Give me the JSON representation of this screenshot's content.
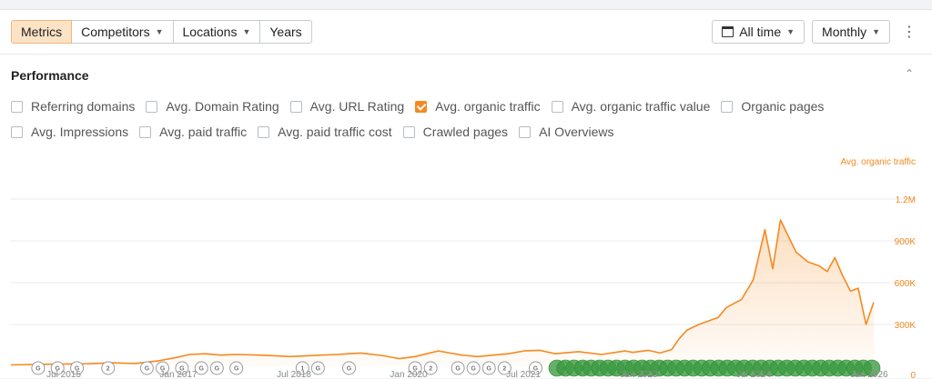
{
  "toolbar": {
    "tabs": [
      {
        "label": "Metrics",
        "active": true,
        "dropdown": false
      },
      {
        "label": "Competitors",
        "active": false,
        "dropdown": true
      },
      {
        "label": "Locations",
        "active": false,
        "dropdown": true
      },
      {
        "label": "Years",
        "active": false,
        "dropdown": false
      }
    ],
    "period_label": "All time",
    "granularity_label": "Monthly"
  },
  "section": {
    "title": "Performance"
  },
  "metrics": {
    "row1": [
      {
        "label": "Referring domains",
        "checked": false
      },
      {
        "label": "Avg. Domain Rating",
        "checked": false
      },
      {
        "label": "Avg. URL Rating",
        "checked": false
      },
      {
        "label": "Avg. organic traffic",
        "checked": true
      },
      {
        "label": "Avg. organic traffic value",
        "checked": false
      },
      {
        "label": "Organic pages",
        "checked": false
      }
    ],
    "row2": [
      {
        "label": "Avg. Impressions",
        "checked": false
      },
      {
        "label": "Avg. paid traffic",
        "checked": false
      },
      {
        "label": "Avg. paid traffic cost",
        "checked": false
      },
      {
        "label": "Crawled pages",
        "checked": false
      },
      {
        "label": "AI Overviews",
        "checked": false
      }
    ]
  },
  "colors": {
    "accent": "#f5891f",
    "annotation_green": "#3a9a3f",
    "annotation_grey": "#9a9a9a"
  },
  "chart_data": {
    "type": "area",
    "series": [
      {
        "name": "Avg. organic traffic"
      }
    ],
    "ylabel": "Avg. organic traffic",
    "ylim": [
      0,
      1200000
    ],
    "y_ticks": [
      {
        "value": 0,
        "label": "0"
      },
      {
        "value": 300000,
        "label": "300K"
      },
      {
        "value": 600000,
        "label": "600K"
      },
      {
        "value": 900000,
        "label": "900K"
      },
      {
        "value": 1200000,
        "label": "1.2M"
      }
    ],
    "x_ticks": [
      "Jul 2015",
      "Jan 2017",
      "Jul 2018",
      "Jan 2020",
      "Jul 2021",
      "Jan 2023",
      "Jul 2024",
      "Jan 2026"
    ],
    "xlim": [
      2015.0,
      2026.1
    ],
    "x": [
      2015.0,
      2015.5,
      2016.0,
      2016.3,
      2016.6,
      2016.9,
      2017.1,
      2017.3,
      2017.5,
      2017.7,
      2017.9,
      2018.2,
      2018.6,
      2019.0,
      2019.2,
      2019.5,
      2019.8,
      2020.0,
      2020.2,
      2020.35,
      2020.5,
      2020.8,
      2021.0,
      2021.4,
      2021.6,
      2021.8,
      2022.0,
      2022.3,
      2022.6,
      2022.9,
      2023.0,
      2023.2,
      2023.35,
      2023.5,
      2023.6,
      2023.7,
      2023.85,
      2024.0,
      2024.1,
      2024.2,
      2024.4,
      2024.55,
      2024.7,
      2024.8,
      2024.9,
      2025.1,
      2025.25,
      2025.4,
      2025.5,
      2025.6,
      2025.7,
      2025.8,
      2025.9,
      2026.0,
      2026.1
    ],
    "values": [
      10000,
      15000,
      18000,
      25000,
      20000,
      40000,
      60000,
      85000,
      90000,
      80000,
      85000,
      80000,
      70000,
      80000,
      85000,
      95000,
      75000,
      55000,
      70000,
      90000,
      110000,
      80000,
      70000,
      90000,
      110000,
      115000,
      90000,
      105000,
      85000,
      110000,
      100000,
      115000,
      95000,
      120000,
      200000,
      260000,
      300000,
      330000,
      350000,
      420000,
      480000,
      620000,
      980000,
      700000,
      1050000,
      820000,
      750000,
      720000,
      680000,
      780000,
      650000,
      540000,
      560000,
      300000,
      460000
    ],
    "annotations": {
      "grey": [
        {
          "x": 2015.35,
          "label": "G"
        },
        {
          "x": 2015.6,
          "label": "G"
        },
        {
          "x": 2015.85,
          "label": "G"
        },
        {
          "x": 2016.25,
          "label": "2"
        },
        {
          "x": 2016.75,
          "label": "G"
        },
        {
          "x": 2016.95,
          "label": "G"
        },
        {
          "x": 2017.2,
          "label": "G"
        },
        {
          "x": 2017.45,
          "label": "G"
        },
        {
          "x": 2017.65,
          "label": "G"
        },
        {
          "x": 2017.9,
          "label": "G"
        },
        {
          "x": 2018.75,
          "label": "1"
        },
        {
          "x": 2018.95,
          "label": "G"
        },
        {
          "x": 2019.35,
          "label": "G"
        },
        {
          "x": 2020.2,
          "label": "G"
        },
        {
          "x": 2020.4,
          "label": "2"
        },
        {
          "x": 2020.75,
          "label": "G"
        },
        {
          "x": 2020.95,
          "label": "G"
        },
        {
          "x": 2021.15,
          "label": "G"
        },
        {
          "x": 2021.35,
          "label": "2"
        },
        {
          "x": 2021.75,
          "label": "G"
        },
        {
          "x": 2022.1,
          "label": "G"
        },
        {
          "x": 2022.35,
          "label": "G"
        },
        {
          "x": 2022.55,
          "label": "2"
        },
        {
          "x": 2022.75,
          "label": "2"
        },
        {
          "x": 2022.95,
          "label": "2"
        },
        {
          "x": 2023.15,
          "label": "2"
        },
        {
          "x": 2023.35,
          "label": "2"
        }
      ],
      "green": [
        2023.45,
        2023.6,
        2023.75,
        2023.9,
        2024.05,
        2024.2,
        2024.35,
        2024.5,
        2024.65,
        2024.8,
        2024.95,
        2025.3,
        2025.45,
        2025.6,
        2025.75,
        2025.9,
        2026.05,
        2026.2,
        2026.35,
        2026.5,
        2026.65,
        2026.8,
        2026.95,
        2027.1,
        2027.25,
        2027.4,
        2027.55,
        2027.7,
        2027.85,
        2028.0,
        2028.15,
        2028.3,
        2028.45,
        2028.6,
        2028.75,
        2028.9,
        2029.05,
        2029.2
      ]
    }
  }
}
